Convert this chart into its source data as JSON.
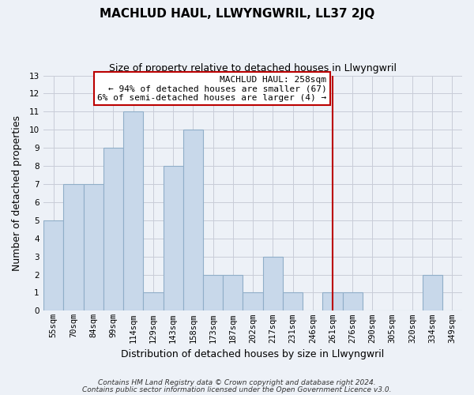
{
  "title": "MACHLUD HAUL, LLWYNGWRIL, LL37 2JQ",
  "subtitle": "Size of property relative to detached houses in Llwyngwril",
  "xlabel": "Distribution of detached houses by size in Llwyngwril",
  "ylabel": "Number of detached properties",
  "bar_labels": [
    "55sqm",
    "70sqm",
    "84sqm",
    "99sqm",
    "114sqm",
    "129sqm",
    "143sqm",
    "158sqm",
    "173sqm",
    "187sqm",
    "202sqm",
    "217sqm",
    "231sqm",
    "246sqm",
    "261sqm",
    "276sqm",
    "290sqm",
    "305sqm",
    "320sqm",
    "334sqm",
    "349sqm"
  ],
  "bar_values": [
    5,
    7,
    7,
    9,
    11,
    1,
    8,
    10,
    2,
    2,
    1,
    3,
    1,
    0,
    1,
    1,
    0,
    0,
    0,
    2,
    0
  ],
  "bar_color": "#c8d8ea",
  "bar_edge_color": "#90aec8",
  "grid_color": "#c8ccd8",
  "background_color": "#edf1f7",
  "vline_x_index": 14,
  "vline_color": "#bb0000",
  "annotation_title": "MACHLUD HAUL: 258sqm",
  "annotation_line1": "← 94% of detached houses are smaller (67)",
  "annotation_line2": "6% of semi-detached houses are larger (4) →",
  "annotation_box_facecolor": "#ffffff",
  "annotation_box_edgecolor": "#bb0000",
  "ylim": [
    0,
    13
  ],
  "yticks": [
    0,
    1,
    2,
    3,
    4,
    5,
    6,
    7,
    8,
    9,
    10,
    11,
    12,
    13
  ],
  "footer1": "Contains HM Land Registry data © Crown copyright and database right 2024.",
  "footer2": "Contains public sector information licensed under the Open Government Licence v3.0.",
  "title_fontsize": 11,
  "subtitle_fontsize": 9,
  "xlabel_fontsize": 9,
  "ylabel_fontsize": 9,
  "tick_fontsize": 7.5,
  "footer_fontsize": 6.5,
  "annotation_fontsize": 8
}
